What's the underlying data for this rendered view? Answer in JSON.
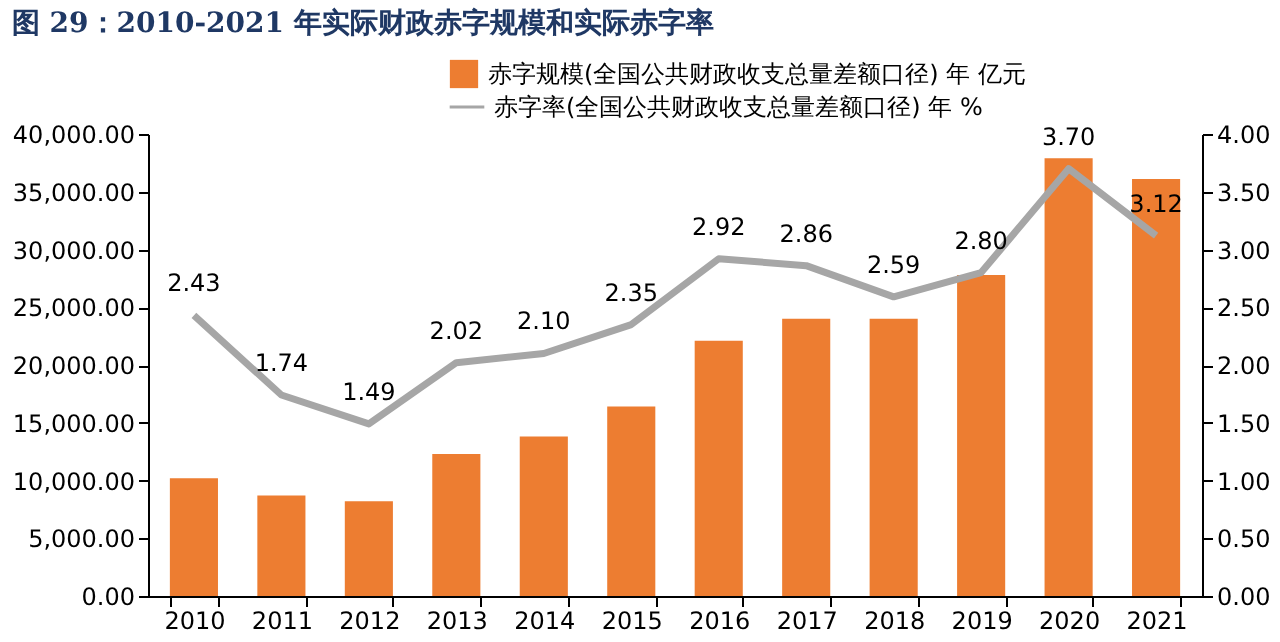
{
  "chart_data": {
    "type": "bar",
    "title": "图 29：2010-2021 年实际财政赤字规模和实际赤字率",
    "categories": [
      "2010",
      "2011",
      "2012",
      "2013",
      "2014",
      "2015",
      "2016",
      "2017",
      "2018",
      "2019",
      "2020",
      "2021"
    ],
    "series": [
      {
        "name": "赤字规模(全国公共财政收支总量差额口径) 年 亿元",
        "color": "#ed7d31",
        "values": [
          10200,
          8700,
          8200,
          12300,
          13800,
          16400,
          22100,
          24000,
          24000,
          27800,
          37900,
          36100
        ]
      },
      {
        "name": "赤字率(全国公共财政收支总量差额口径) 年 %",
        "type": "line",
        "axis": "y2",
        "color": "#a6a6a6",
        "values": [
          2.43,
          1.74,
          1.49,
          2.02,
          2.1,
          2.35,
          2.92,
          2.86,
          2.59,
          2.8,
          3.7,
          3.12
        ],
        "value_labels": [
          "2.43",
          "1.74",
          "1.49",
          "2.02",
          "2.10",
          "2.35",
          "2.92",
          "2.86",
          "2.59",
          "2.80",
          "3.70",
          "3.12"
        ]
      }
    ],
    "ylim": [
      0,
      40000
    ],
    "yticks": [
      {
        "value": 0,
        "label": "0.00"
      },
      {
        "value": 5000,
        "label": "5,000.00"
      },
      {
        "value": 10000,
        "label": "10,000.00"
      },
      {
        "value": 15000,
        "label": "15,000.00"
      },
      {
        "value": 20000,
        "label": "20,000.00"
      },
      {
        "value": 25000,
        "label": "25,000.00"
      },
      {
        "value": 30000,
        "label": "30,000.00"
      },
      {
        "value": 35000,
        "label": "35,000.00"
      },
      {
        "value": 40000,
        "label": "40,000.00"
      }
    ],
    "y2lim": [
      0,
      4
    ],
    "y2ticks": [
      {
        "value": 0,
        "label": "0.00"
      },
      {
        "value": 0.5,
        "label": "0.50"
      },
      {
        "value": 1,
        "label": "1.00"
      },
      {
        "value": 1.5,
        "label": "1.50"
      },
      {
        "value": 2,
        "label": "2.00"
      },
      {
        "value": 2.5,
        "label": "2.50"
      },
      {
        "value": 3,
        "label": "3.00"
      },
      {
        "value": 3.5,
        "label": "3.50"
      },
      {
        "value": 4,
        "label": "4.00"
      }
    ],
    "grid": false,
    "legend": "top",
    "marker": "none",
    "line_style": "solid"
  }
}
